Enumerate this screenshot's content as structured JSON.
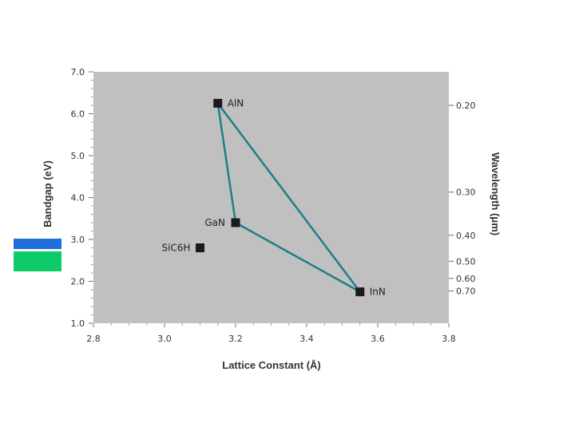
{
  "swatches": {
    "top_color": "#1e6fdc",
    "bottom_color": "#0ecb6a"
  },
  "chart_data": {
    "type": "scatter",
    "xlabel": "Lattice Constant (Å)",
    "ylabel": "Bandgap (eV)",
    "y2label": "Wavelength (μm)",
    "xlim": [
      2.8,
      3.8
    ],
    "ylim": [
      1.0,
      7.0
    ],
    "x_ticks": [
      "2.8",
      "3.0",
      "3.2",
      "3.4",
      "3.6",
      "3.8"
    ],
    "y_ticks": [
      "1.0",
      "2.0",
      "3.0",
      "4.0",
      "5.0",
      "6.0",
      "7.0"
    ],
    "y2_ticks": [
      {
        "label": "0.20",
        "bandgap": 6.2
      },
      {
        "label": "0.30",
        "bandgap": 4.13
      },
      {
        "label": "0.40",
        "bandgap": 3.1
      },
      {
        "label": "0.50",
        "bandgap": 2.48
      },
      {
        "label": "0.60",
        "bandgap": 2.07
      },
      {
        "label": "0.70",
        "bandgap": 1.77
      }
    ],
    "points": [
      {
        "label": "AlN",
        "x": 3.15,
        "y": 6.25
      },
      {
        "label": "GaN",
        "x": 3.2,
        "y": 3.4
      },
      {
        "label": "SiC6H",
        "x": 3.1,
        "y": 2.8
      },
      {
        "label": "InN",
        "x": 3.55,
        "y": 1.75
      }
    ],
    "polygon": [
      "AlN",
      "GaN",
      "InN"
    ],
    "polygon_color": "#1f7f86",
    "plot_bg": "#c0c0c0",
    "marker_color": "#1a1a1a",
    "grid": false
  }
}
